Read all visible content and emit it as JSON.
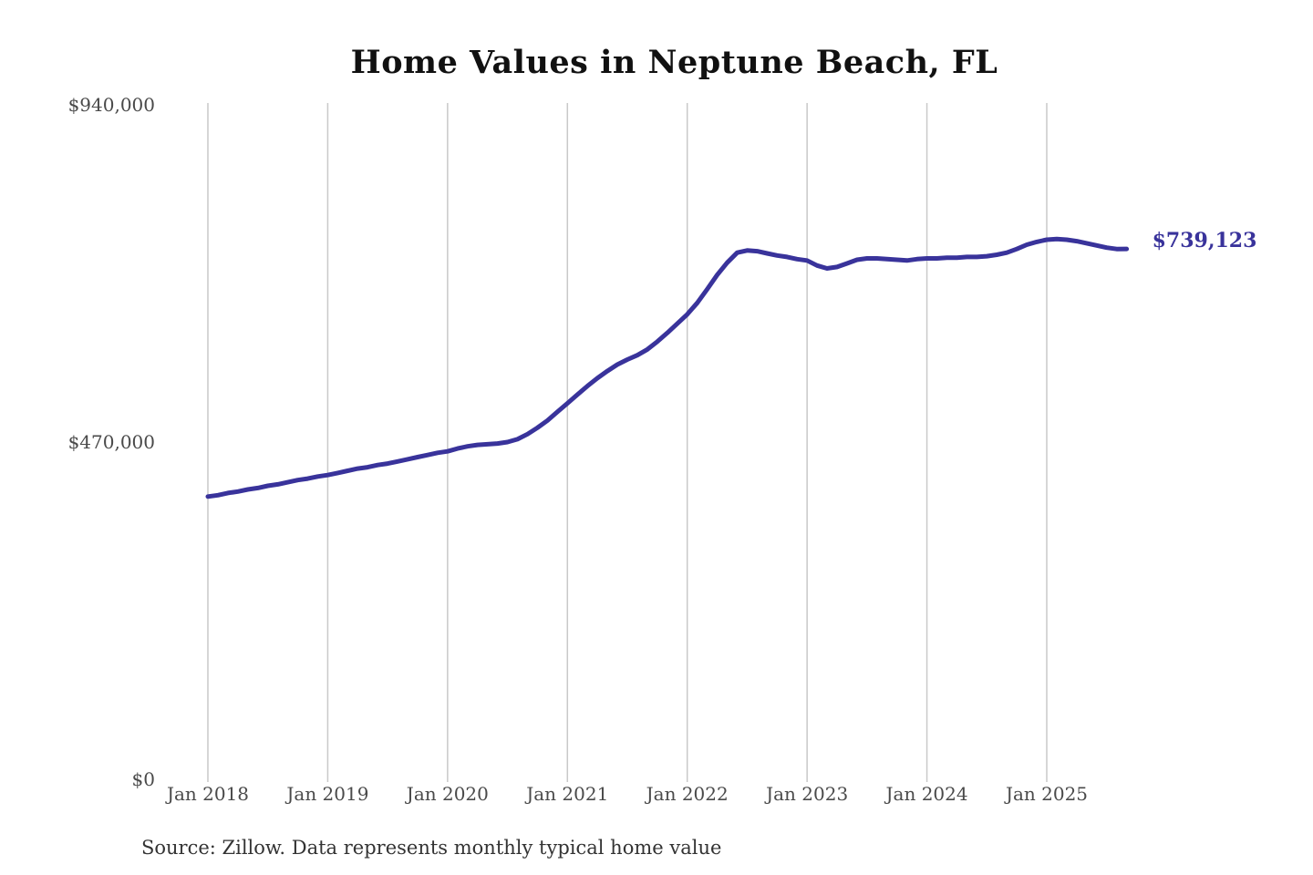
{
  "chart": {
    "title": "Home Values in Neptune Beach, FL",
    "source_note": "Source: Zillow. Data represents monthly typical home value",
    "end_label": "$739,123",
    "line_color": "#39339b",
    "grid_color": "#c9c9c9",
    "axis_text_color": "#4a4a4a",
    "title_color": "#111111",
    "source_color": "#333333"
  },
  "chart_data": {
    "type": "line",
    "title": "Home Values in Neptune Beach, FL",
    "series_name": "Monthly typical home value (Zillow)",
    "ylim": [
      0,
      940000
    ],
    "grid": "vertical-only",
    "legend": "none",
    "y_ticks": [
      {
        "value": 0,
        "label": "$0"
      },
      {
        "value": 470000,
        "label": "$470,000"
      },
      {
        "value": 940000,
        "label": "$940,000"
      }
    ],
    "x_ticks": [
      {
        "index": 0,
        "label": "Jan 2018"
      },
      {
        "index": 12,
        "label": "Jan 2019"
      },
      {
        "index": 24,
        "label": "Jan 2020"
      },
      {
        "index": 36,
        "label": "Jan 2021"
      },
      {
        "index": 48,
        "label": "Jan 2022"
      },
      {
        "index": 60,
        "label": "Jan 2023"
      },
      {
        "index": 72,
        "label": "Jan 2024"
      },
      {
        "index": 84,
        "label": "Jan 2025"
      }
    ],
    "annotation": {
      "text": "$739,123",
      "position": "last-point"
    },
    "x": [
      "Jan 2018",
      "Feb 2018",
      "Mar 2018",
      "Apr 2018",
      "May 2018",
      "Jun 2018",
      "Jul 2018",
      "Aug 2018",
      "Sep 2018",
      "Oct 2018",
      "Nov 2018",
      "Dec 2018",
      "Jan 2019",
      "Feb 2019",
      "Mar 2019",
      "Apr 2019",
      "May 2019",
      "Jun 2019",
      "Jul 2019",
      "Aug 2019",
      "Sep 2019",
      "Oct 2019",
      "Nov 2019",
      "Dec 2019",
      "Jan 2020",
      "Feb 2020",
      "Mar 2020",
      "Apr 2020",
      "May 2020",
      "Jun 2020",
      "Jul 2020",
      "Aug 2020",
      "Sep 2020",
      "Oct 2020",
      "Nov 2020",
      "Dec 2020",
      "Jan 2021",
      "Feb 2021",
      "Mar 2021",
      "Apr 2021",
      "May 2021",
      "Jun 2021",
      "Jul 2021",
      "Aug 2021",
      "Sep 2021",
      "Oct 2021",
      "Nov 2021",
      "Dec 2021",
      "Jan 2022",
      "Feb 2022",
      "Mar 2022",
      "Apr 2022",
      "May 2022",
      "Jun 2022",
      "Jul 2022",
      "Aug 2022",
      "Sep 2022",
      "Oct 2022",
      "Nov 2022",
      "Dec 2022",
      "Jan 2023",
      "Feb 2023",
      "Mar 2023",
      "Apr 2023",
      "May 2023",
      "Jun 2023",
      "Jul 2023",
      "Aug 2023",
      "Sep 2023",
      "Oct 2023",
      "Nov 2023",
      "Dec 2023",
      "Jan 2024",
      "Feb 2024",
      "Mar 2024",
      "Apr 2024",
      "May 2024",
      "Jun 2024",
      "Jul 2024",
      "Aug 2024",
      "Sep 2024",
      "Oct 2024",
      "Nov 2024",
      "Dec 2024",
      "Jan 2025",
      "Feb 2025",
      "Mar 2025",
      "Apr 2025",
      "May 2025",
      "Jun 2025",
      "Jul 2025",
      "Aug 2025",
      "Sep 2025"
    ],
    "values": [
      394000,
      396000,
      399000,
      401000,
      404000,
      406000,
      409000,
      411000,
      414000,
      417000,
      419000,
      422000,
      424000,
      427000,
      430000,
      433000,
      435000,
      438000,
      440000,
      443000,
      446000,
      449000,
      452000,
      455000,
      457000,
      461000,
      464000,
      466000,
      467000,
      468000,
      470000,
      474000,
      481000,
      490000,
      500000,
      512000,
      524000,
      536000,
      548000,
      559000,
      569000,
      578000,
      585000,
      591000,
      599000,
      610000,
      622000,
      635000,
      648000,
      664000,
      683000,
      703000,
      720000,
      734000,
      737000,
      736000,
      733000,
      730000,
      728000,
      725000,
      723000,
      716000,
      712000,
      714000,
      719000,
      724000,
      726000,
      726000,
      725000,
      724000,
      723000,
      725000,
      726000,
      726000,
      727000,
      727000,
      728000,
      728000,
      729000,
      731000,
      734000,
      739000,
      745000,
      749000,
      752000,
      753000,
      752000,
      750000,
      747000,
      744000,
      741000,
      739000,
      739123
    ]
  }
}
